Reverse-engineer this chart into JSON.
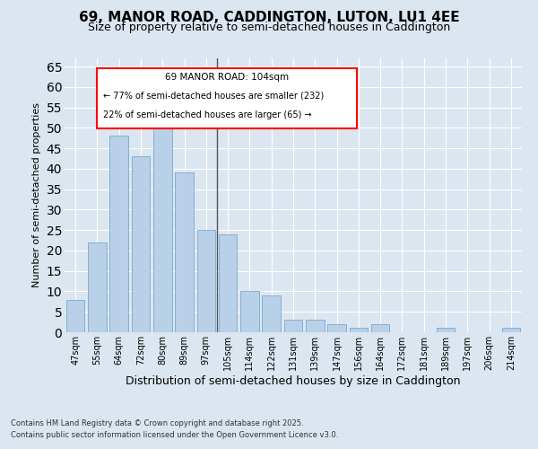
{
  "title": "69, MANOR ROAD, CADDINGTON, LUTON, LU1 4EE",
  "subtitle": "Size of property relative to semi-detached houses in Caddington",
  "xlabel": "Distribution of semi-detached houses by size in Caddington",
  "ylabel": "Number of semi-detached properties",
  "categories": [
    "47sqm",
    "55sqm",
    "64sqm",
    "72sqm",
    "80sqm",
    "89sqm",
    "97sqm",
    "105sqm",
    "114sqm",
    "122sqm",
    "131sqm",
    "139sqm",
    "147sqm",
    "156sqm",
    "164sqm",
    "172sqm",
    "181sqm",
    "189sqm",
    "197sqm",
    "206sqm",
    "214sqm"
  ],
  "values": [
    8,
    22,
    48,
    43,
    52,
    39,
    25,
    24,
    10,
    9,
    3,
    3,
    2,
    1,
    2,
    0,
    0,
    1,
    0,
    0,
    1
  ],
  "bar_color": "#b8d0e8",
  "bar_edge_color": "#7aaacc",
  "highlight_index": 7,
  "annotation_title": "69 MANOR ROAD: 104sqm",
  "annotation_line1": "← 77% of semi-detached houses are smaller (232)",
  "annotation_line2": "22% of semi-detached houses are larger (65) →",
  "footer_line1": "Contains HM Land Registry data © Crown copyright and database right 2025.",
  "footer_line2": "Contains public sector information licensed under the Open Government Licence v3.0.",
  "ylim": [
    0,
    67
  ],
  "yticks": [
    0,
    5,
    10,
    15,
    20,
    25,
    30,
    35,
    40,
    45,
    50,
    55,
    60,
    65
  ],
  "bg_color": "#dce6f0",
  "grid_color": "#ffffff",
  "title_fontsize": 11,
  "subtitle_fontsize": 9,
  "xlabel_fontsize": 9,
  "ylabel_fontsize": 8,
  "tick_fontsize": 7,
  "ann_fontsize_title": 7.5,
  "ann_fontsize_body": 7,
  "footer_fontsize": 6
}
